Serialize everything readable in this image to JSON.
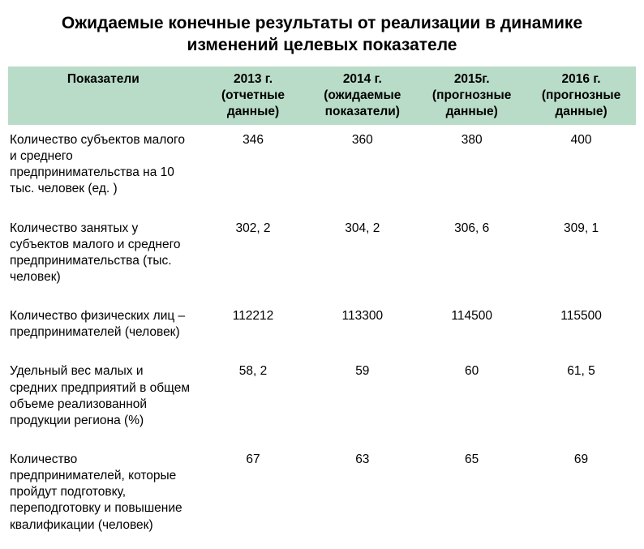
{
  "title": "Ожидаемые конечные результаты от реализации в динамике изменений целевых показателе",
  "table": {
    "columns": [
      "Показатели",
      "2013 г. (отчетные данные)",
      "2014 г. (ожидаемые показатели)",
      "2015г. (прогнозные данные)",
      "2016 г. (прогнозные данные)"
    ],
    "rows": [
      {
        "label": "Количество субъектов малого и среднего предпринимательства на 10 тыс. человек (ед. )",
        "c1": "346",
        "c2": "360",
        "c3": "380",
        "c4": "400"
      },
      {
        "label": "Количество занятых у субъектов малого и среднего предпринимательства (тыс. человек)",
        "c1": "302, 2",
        "c2": "304, 2",
        "c3": "306, 6",
        "c4": "309, 1"
      },
      {
        "label": "Количество физических лиц – предпринимателей (человек)",
        "c1": "112212",
        "c2": "113300",
        "c3": "114500",
        "c4": "115500"
      },
      {
        "label": "Удельный вес малых и средних предприятий в общем объеме реализованной продукции региона (%)",
        "c1": "58, 2",
        "c2": "59",
        "c3": "60",
        "c4": "61, 5"
      },
      {
        "label": "Количество предпринимателей, которые пройдут подготовку, переподготовку и повышение квалификации (человек)",
        "c1": "67",
        "c2": "63",
        "c3": "65",
        "c4": "69"
      }
    ],
    "header_bg": "#b8dcc8",
    "background_color": "#ffffff",
    "title_fontsize": 21,
    "cell_fontsize": 15.5
  }
}
